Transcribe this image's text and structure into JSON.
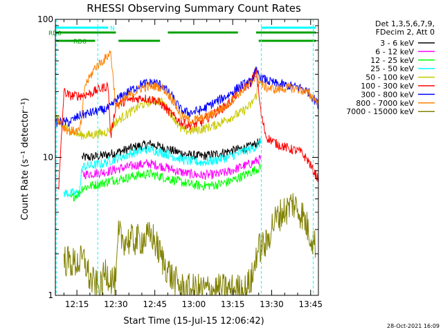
{
  "chart_data": {
    "type": "line",
    "title": "RHESSI Observing Summary Count Rates",
    "xlabel": "Start Time (15-Jul-15 12:06:42)",
    "ylabel": "Count Rate (s⁻¹ detector⁻¹)",
    "yscale": "log",
    "ylim": [
      1,
      100
    ],
    "xlim_minutes_after_1200": [
      6.7,
      108
    ],
    "x_ticks": [
      "12:15",
      "12:30",
      "12:45",
      "13:00",
      "13:15",
      "13:30",
      "13:45"
    ],
    "y_ticks": [
      "1",
      "10",
      "100"
    ],
    "grid": false,
    "legend_position": "top-right",
    "info_lines": [
      "Det 1,3,5,6,7,9,",
      "FDecim 2, Att 0"
    ],
    "timestamp": "28-Oct-2021 16:09",
    "flags": [
      {
        "label": "RD0",
        "color": "#00a000",
        "segments": [
          [
            6.7,
            30
          ],
          [
            50,
            77
          ],
          [
            84,
            107
          ]
        ]
      },
      {
        "label": "RD6",
        "color": "#00a000",
        "segments": [
          [
            6.7,
            22
          ],
          [
            31,
            47
          ],
          [
            85,
            107
          ]
        ]
      },
      {
        "label": "N",
        "color": "#00ffff",
        "segments": [
          [
            6.7,
            27
          ],
          [
            86,
            107
          ]
        ]
      }
    ],
    "night_markers_minutes": [
      7,
      23,
      86,
      106
    ],
    "series": [
      {
        "name": "3 - 6 keV",
        "color": "#000000",
        "x": [
          6.7,
          10,
          12,
          16,
          17,
          20,
          25,
          28,
          33,
          38,
          43,
          48,
          53,
          58,
          63,
          68,
          73,
          78,
          82,
          84,
          86,
          89,
          93
        ],
        "y": [
          null,
          null,
          null,
          null,
          10,
          10,
          10.3,
          10.6,
          11.2,
          12,
          12.5,
          11.8,
          11,
          10.4,
          10.2,
          10.5,
          11,
          11.5,
          12,
          12.5,
          13,
          null,
          null
        ]
      },
      {
        "name": "6 - 12 keV",
        "color": "#ff00ff",
        "x": [
          6.7,
          10,
          12,
          16,
          17,
          20,
          25,
          28,
          33,
          38,
          43,
          48,
          53,
          58,
          63,
          68,
          73,
          78,
          82,
          84,
          86,
          89,
          93
        ],
        "y": [
          null,
          null,
          null,
          null,
          7.5,
          7.6,
          7.8,
          8,
          8.4,
          8.8,
          9,
          8.6,
          8,
          7.6,
          7.4,
          7.5,
          7.8,
          8.5,
          9,
          9.4,
          9.8,
          null,
          null
        ]
      },
      {
        "name": "12 - 25 keV",
        "color": "#00ff00",
        "x": [
          6.7,
          10,
          12,
          16,
          17,
          20,
          25,
          28,
          33,
          38,
          43,
          48,
          53,
          58,
          63,
          68,
          73,
          78,
          82,
          84,
          86,
          89,
          93
        ],
        "y": [
          null,
          null,
          5,
          5.5,
          6,
          6.2,
          6.5,
          6.8,
          7,
          7.4,
          7.6,
          7.2,
          6.8,
          6.4,
          6.2,
          6.3,
          6.6,
          7.2,
          7.8,
          8.2,
          8.5,
          null,
          null
        ]
      },
      {
        "name": "25 - 50 keV",
        "color": "#00ffff",
        "x": [
          6.7,
          10,
          12,
          16,
          17,
          20,
          25,
          28,
          33,
          38,
          43,
          48,
          53,
          58,
          63,
          68,
          73,
          78,
          82,
          84,
          86,
          89,
          93
        ],
        "y": [
          null,
          5.5,
          5.5,
          5.5,
          8.5,
          8.7,
          9,
          9.5,
          10.2,
          11,
          11.5,
          10.8,
          10,
          9.4,
          9.2,
          9.5,
          10,
          10.8,
          11.5,
          12,
          13,
          null,
          null
        ]
      },
      {
        "name": "50 - 100 keV",
        "color": "#c8c800",
        "x": [
          6.7,
          10,
          12,
          16,
          20,
          25,
          27,
          30,
          35,
          40,
          45,
          48,
          52,
          55,
          58,
          63,
          68,
          73,
          78,
          82,
          84,
          86
        ],
        "y": [
          20,
          17,
          16,
          14.5,
          14.5,
          15,
          15.5,
          18,
          21,
          24,
          26,
          25,
          20,
          16,
          15.5,
          16,
          17,
          19,
          21,
          24,
          28,
          40
        ]
      },
      {
        "name": "100 - 300 keV",
        "color": "#ff0000",
        "x": [
          6.7,
          8,
          10,
          12,
          16,
          20,
          25,
          27,
          28,
          30,
          35,
          40,
          45,
          48,
          52,
          55,
          58,
          63,
          68,
          73,
          78,
          82,
          84,
          86,
          88,
          92,
          97,
          101,
          104,
          106,
          108
        ],
        "y": [
          null,
          6,
          30,
          28,
          28,
          29,
          32,
          33,
          14,
          24,
          26,
          27,
          26,
          24,
          20,
          18,
          17,
          18,
          21,
          24,
          31,
          35,
          43,
          20,
          14,
          12.5,
          11.5,
          11,
          9.5,
          8,
          7
        ]
      },
      {
        "name": "300 - 800 keV",
        "color": "#0000ff",
        "x": [
          6.7,
          10,
          12,
          16,
          20,
          25,
          28,
          30,
          35,
          40,
          45,
          48,
          52,
          55,
          58,
          63,
          68,
          73,
          78,
          82,
          84,
          86,
          88,
          92,
          97,
          101,
          104,
          106,
          108
        ],
        "y": [
          18,
          18,
          18,
          20,
          21,
          22,
          23,
          26,
          30,
          34,
          35,
          33,
          27,
          22,
          21,
          22,
          25,
          28,
          33,
          35,
          42,
          38,
          36,
          34,
          33,
          32,
          30,
          27,
          24
        ]
      },
      {
        "name": "800 - 7000 keV",
        "color": "#ff8000",
        "x": [
          6.7,
          10,
          12,
          16,
          17,
          18,
          20,
          22,
          26,
          28,
          30,
          35,
          40,
          45,
          48,
          52,
          55,
          58,
          63,
          68,
          73,
          78,
          82,
          84,
          86,
          88,
          92,
          97,
          101,
          104,
          106,
          108
        ],
        "y": [
          20,
          16.5,
          15.5,
          15.5,
          20,
          33,
          38,
          45,
          52,
          58,
          23,
          28,
          32,
          33,
          32,
          26,
          20,
          18.5,
          19,
          21,
          24,
          30,
          34,
          40,
          34,
          32,
          31,
          32,
          31,
          29,
          27,
          25
        ]
      },
      {
        "name": "7000 - 15000 keV",
        "color": "#808000",
        "x": [
          6.7,
          10,
          14,
          18,
          20,
          24,
          26,
          30,
          31,
          34,
          38,
          42,
          44,
          48,
          52,
          56,
          60,
          64,
          68,
          72,
          76,
          80,
          83,
          84,
          86,
          88,
          90,
          92,
          94,
          96,
          98,
          100,
          102,
          104,
          106,
          107
        ],
        "y": [
          null,
          1.8,
          1.7,
          1.8,
          1.3,
          1.1,
          1.5,
          1.2,
          2.7,
          2.5,
          2.5,
          2.6,
          2.7,
          1.8,
          1.3,
          1.1,
          1.1,
          1.1,
          1.1,
          1.1,
          1.1,
          1.1,
          1.4,
          2,
          2.3,
          2.3,
          3.2,
          3.6,
          4,
          4.2,
          4.7,
          4.2,
          3.8,
          3,
          2.5,
          2.3
        ]
      }
    ]
  }
}
